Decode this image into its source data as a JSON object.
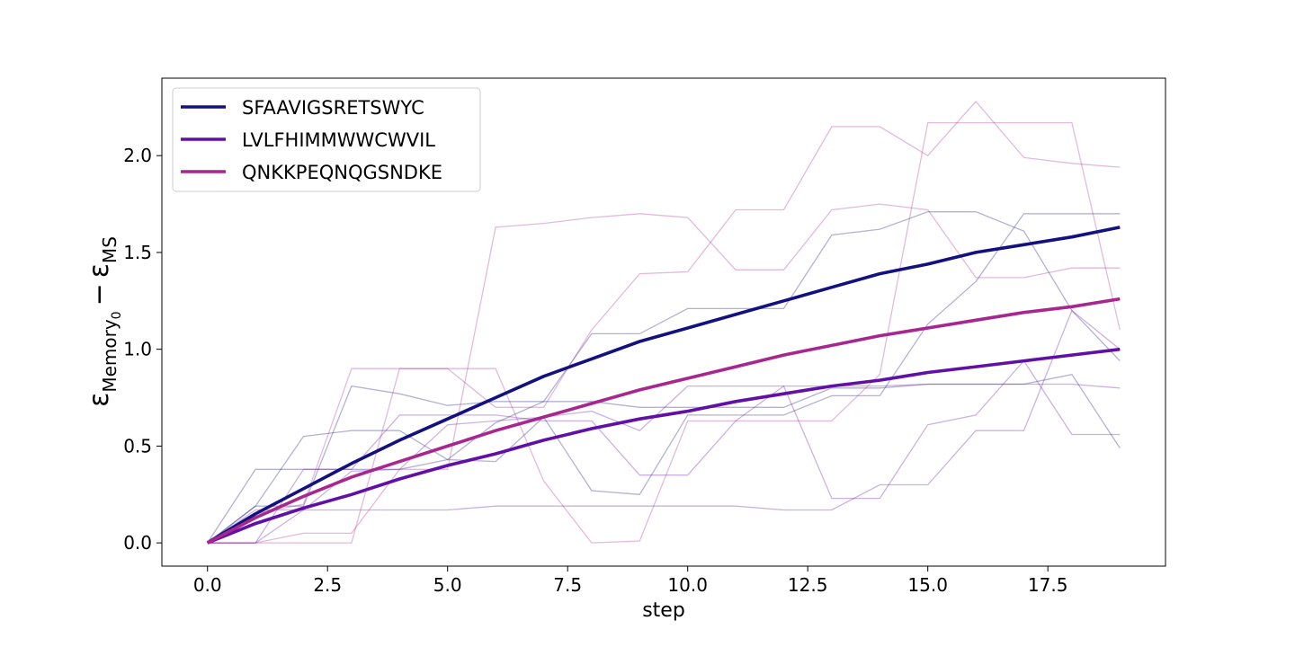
{
  "chart_data": {
    "type": "line",
    "title": "",
    "xlabel": "step",
    "ylabel": {
      "base": "ε",
      "sub1": "Memory",
      "sub1sub": "0",
      "minus": "−",
      "base2": "ε",
      "sub2": "MS"
    },
    "xlim": [
      -0.95,
      19.95
    ],
    "ylim": [
      -0.12,
      2.4
    ],
    "xticks": [
      0.0,
      2.5,
      5.0,
      7.5,
      10.0,
      12.5,
      15.0,
      17.5
    ],
    "xtick_labels": [
      "0.0",
      "2.5",
      "5.0",
      "7.5",
      "10.0",
      "12.5",
      "15.0",
      "17.5"
    ],
    "yticks": [
      0.0,
      0.5,
      1.0,
      1.5,
      2.0
    ],
    "ytick_labels": [
      "0.0",
      "0.5",
      "1.0",
      "1.5",
      "2.0"
    ],
    "grid": false,
    "legend_position": "top-left",
    "x": [
      0,
      1,
      2,
      3,
      4,
      5,
      6,
      7,
      8,
      9,
      10,
      11,
      12,
      13,
      14,
      15,
      16,
      17,
      18,
      19
    ],
    "series": [
      {
        "name": "SFAAVIGSRETSWYC",
        "color": "#13107f",
        "mean": [
          0.0,
          0.15,
          0.28,
          0.41,
          0.53,
          0.64,
          0.75,
          0.86,
          0.95,
          1.04,
          1.11,
          1.18,
          1.25,
          1.32,
          1.39,
          1.44,
          1.5,
          1.54,
          1.58,
          1.63
        ],
        "runs": [
          [
            0,
            0.38,
            0.38,
            0.38,
            0.38,
            0.43,
            0.42,
            0.65,
            0.27,
            0.25,
            0.66,
            0.66,
            0.66,
            0.76,
            0.76,
            1.13,
            1.35,
            1.7,
            1.7,
            1.7
          ],
          [
            0,
            0.19,
            0.55,
            0.58,
            0.58,
            0.43,
            0.62,
            0.73,
            1.08,
            1.08,
            1.21,
            1.21,
            1.21,
            1.59,
            1.62,
            1.71,
            1.71,
            1.61,
            1.2,
            0.94
          ],
          [
            0,
            0.19,
            0.19,
            0.81,
            0.77,
            0.71,
            0.73,
            0.73,
            0.73,
            0.7,
            0.7,
            0.7,
            0.7,
            0.8,
            0.8,
            0.82,
            0.82,
            0.82,
            0.87,
            0.49
          ]
        ]
      },
      {
        "name": "LVLFHIMMWWCWVIL",
        "color": "#6010a6",
        "mean": [
          0.0,
          0.1,
          0.18,
          0.25,
          0.33,
          0.4,
          0.46,
          0.53,
          0.59,
          0.64,
          0.68,
          0.73,
          0.77,
          0.81,
          0.84,
          0.88,
          0.91,
          0.94,
          0.97,
          1.0
        ],
        "runs": [
          [
            0,
            0,
            0.38,
            0.38,
            0.66,
            0.66,
            0.66,
            0.63,
            0.63,
            0.35,
            0.35,
            0.63,
            0.81,
            0.23,
            0.23,
            0.61,
            0.66,
            0.94,
            0.56,
            0.56
          ],
          [
            0,
            0,
            0.17,
            0.17,
            0.17,
            0.17,
            0.19,
            0.19,
            0.19,
            0.19,
            0.19,
            0.19,
            0.17,
            0.17,
            0.3,
            0.3,
            0.58,
            0.58,
            1.2,
            1.0
          ],
          [
            0,
            0.17,
            0.17,
            0.37,
            0.38,
            0.61,
            0.63,
            0.65,
            0.68,
            0.58,
            0.81,
            0.81,
            0.81,
            0.81,
            0.81,
            0.82,
            0.82,
            0.82,
            0.82,
            0.8
          ]
        ]
      },
      {
        "name": "QNKKPEQNQGSNDKE",
        "color": "#a8278e",
        "mean": [
          0.0,
          0.13,
          0.24,
          0.34,
          0.42,
          0.5,
          0.58,
          0.65,
          0.72,
          0.79,
          0.85,
          0.91,
          0.97,
          1.02,
          1.07,
          1.11,
          1.15,
          1.19,
          1.22,
          1.26
        ],
        "runs": [
          [
            0,
            0,
            0.05,
            0.05,
            0.38,
            0.38,
            1.63,
            1.65,
            1.68,
            1.7,
            1.68,
            1.41,
            1.41,
            1.72,
            1.75,
            1.72,
            1.37,
            1.37,
            1.42,
            1.42
          ],
          [
            0,
            0,
            0,
            0,
            0.9,
            0.9,
            0.9,
            0.32,
            0,
            0.01,
            0.63,
            0.63,
            0.63,
            0.63,
            0.87,
            2.17,
            2.17,
            2.17,
            2.17,
            1.1
          ],
          [
            0,
            0.15,
            0.2,
            0.9,
            0.9,
            0.9,
            0.7,
            0.7,
            1.1,
            1.39,
            1.4,
            1.72,
            1.72,
            2.15,
            2.15,
            2.0,
            2.28,
            1.99,
            1.96,
            1.94
          ]
        ]
      }
    ]
  }
}
